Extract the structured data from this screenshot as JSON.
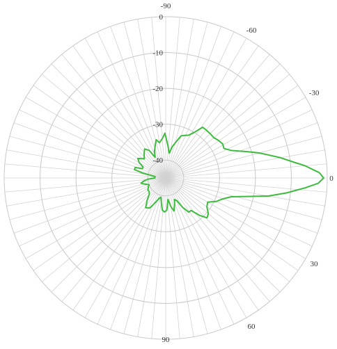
{
  "chart_data": {
    "type": "polar-line",
    "angle_unit": "degrees",
    "zero_direction": "right",
    "angle_increases": "clockwise",
    "angle_labels": [
      {
        "angle": -90,
        "text": "-90"
      },
      {
        "angle": -60,
        "text": "-60"
      },
      {
        "angle": -30,
        "text": "-30"
      },
      {
        "angle": 0,
        "text": "0"
      },
      {
        "angle": 30,
        "text": "30"
      },
      {
        "angle": 60,
        "text": "60"
      },
      {
        "angle": 90,
        "text": "90"
      }
    ],
    "radial_range": [
      -45,
      0
    ],
    "radial_labels": [
      {
        "value": 0,
        "text": "0"
      },
      {
        "value": -10,
        "text": "-10"
      },
      {
        "value": -20,
        "text": "-20"
      },
      {
        "value": -30,
        "text": "-30"
      },
      {
        "value": -40,
        "text": "-40"
      }
    ],
    "grid": {
      "rings": [
        0,
        -10,
        -20,
        -30,
        -40
      ],
      "spoke_step_deg": 5,
      "ring_color": "#c8c8c8",
      "spoke_color": "#d2d2d2"
    },
    "series": [
      {
        "color": "#3dbb3d",
        "points": [
          [
            -180,
            -42
          ],
          [
            -176,
            -42
          ],
          [
            -172,
            -42
          ],
          [
            -168,
            -38.5
          ],
          [
            -165,
            -36
          ],
          [
            -161,
            -36
          ],
          [
            -158,
            -38
          ],
          [
            -154,
            -38
          ],
          [
            -150,
            -36.5
          ],
          [
            -145,
            -35.5
          ],
          [
            -138,
            -37
          ],
          [
            -132,
            -36
          ],
          [
            -126,
            -35
          ],
          [
            -121,
            -36
          ],
          [
            -117,
            -38.5
          ],
          [
            -113,
            -37
          ],
          [
            -108,
            -35.5
          ],
          [
            -104,
            -34
          ],
          [
            -100,
            -35
          ],
          [
            -95,
            -34
          ],
          [
            -91,
            -32.5
          ],
          [
            -86,
            -36
          ],
          [
            -82,
            -38
          ],
          [
            -78,
            -36
          ],
          [
            -74,
            -34.5
          ],
          [
            -70,
            -32.5
          ],
          [
            -66,
            -32
          ],
          [
            -62,
            -31.5
          ],
          [
            -58,
            -30
          ],
          [
            -54,
            -27.5
          ],
          [
            -50,
            -27.5
          ],
          [
            -45,
            -27.5
          ],
          [
            -40,
            -27.5
          ],
          [
            -36,
            -27
          ],
          [
            -31,
            -26.5
          ],
          [
            -27,
            -26.8
          ],
          [
            -23,
            -25.3
          ],
          [
            -18,
            -21.2
          ],
          [
            -15,
            -18
          ],
          [
            -10,
            -12.5
          ],
          [
            -7,
            -9
          ],
          [
            -5,
            -6
          ],
          [
            -2,
            -2.2
          ],
          [
            0,
            -1
          ],
          [
            2,
            -2.5
          ],
          [
            4,
            -6
          ],
          [
            7,
            -11
          ],
          [
            10,
            -16
          ],
          [
            13,
            -22
          ],
          [
            16,
            -26
          ],
          [
            20,
            -28
          ],
          [
            25,
            -29.5
          ],
          [
            30,
            -31.5
          ],
          [
            35,
            -31
          ],
          [
            40,
            -29.5
          ],
          [
            44,
            -29
          ],
          [
            48,
            -31
          ],
          [
            52,
            -33.5
          ],
          [
            56,
            -33.5
          ],
          [
            60,
            -35.5
          ],
          [
            64,
            -38
          ],
          [
            68,
            -38.5
          ],
          [
            72,
            -37
          ],
          [
            76,
            -35.5
          ],
          [
            80,
            -37
          ],
          [
            84,
            -39
          ],
          [
            88,
            -36
          ],
          [
            92,
            -35.5
          ],
          [
            96,
            -36
          ],
          [
            100,
            -38
          ],
          [
            104,
            -39.5
          ],
          [
            108,
            -39
          ],
          [
            113,
            -37.5
          ],
          [
            118,
            -35.5
          ],
          [
            124,
            -35
          ],
          [
            130,
            -37
          ],
          [
            135,
            -38.5
          ],
          [
            140,
            -39
          ],
          [
            146,
            -39
          ],
          [
            152,
            -39.5
          ],
          [
            158,
            -40
          ],
          [
            163,
            -39
          ],
          [
            168,
            -38
          ],
          [
            172,
            -38.8
          ],
          [
            176,
            -40
          ],
          [
            180,
            -42
          ]
        ]
      }
    ]
  }
}
